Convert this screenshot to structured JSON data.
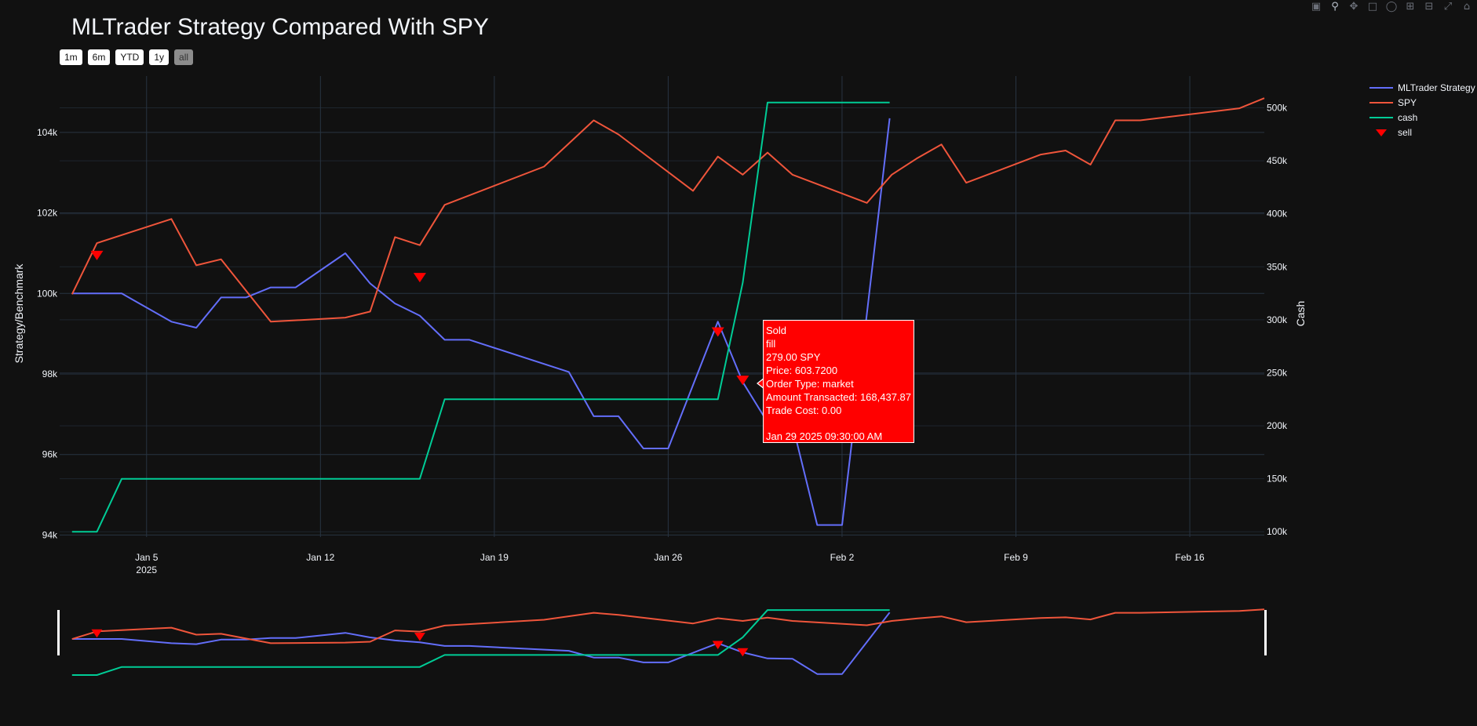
{
  "title": "MLTrader Strategy Compared With SPY",
  "range_buttons": [
    {
      "label": "1m",
      "active": false
    },
    {
      "label": "6m",
      "active": false
    },
    {
      "label": "YTD",
      "active": false
    },
    {
      "label": "1y",
      "active": false
    },
    {
      "label": "all",
      "active": true
    }
  ],
  "modebar": [
    "camera-icon",
    "zoom-icon",
    "pan-icon",
    "box-select-icon",
    "lasso-icon",
    "zoom-in-icon",
    "zoom-out-icon",
    "autoscale-icon",
    "home-icon"
  ],
  "colors": {
    "strategy": "#636efa",
    "spy": "#ef553b",
    "cash": "#00cc96",
    "sell": "#ff0000",
    "grid": "#283442",
    "background": "#111111"
  },
  "chart_data": {
    "type": "line",
    "title": "MLTrader Strategy Compared With SPY",
    "ylabel": "Strategy/Benchmark",
    "y2label": "Cash",
    "xlim": [
      "2025-01-01T12:00",
      "2025-02-19T00:00"
    ],
    "ylim": [
      93950,
      105400
    ],
    "y2lim": [
      95000,
      530000
    ],
    "xticks": [
      {
        "date": "2025-01-05",
        "label": "Jan 5",
        "sublabel": "2025"
      },
      {
        "date": "2025-01-12",
        "label": "Jan 12",
        "sublabel": ""
      },
      {
        "date": "2025-01-19",
        "label": "Jan 19",
        "sublabel": ""
      },
      {
        "date": "2025-01-26",
        "label": "Jan 26",
        "sublabel": ""
      },
      {
        "date": "2025-02-02",
        "label": "Feb 2",
        "sublabel": ""
      },
      {
        "date": "2025-02-09",
        "label": "Feb 9",
        "sublabel": ""
      },
      {
        "date": "2025-02-16",
        "label": "Feb 16",
        "sublabel": ""
      }
    ],
    "yticks": [
      {
        "value": 94000,
        "label": "94k"
      },
      {
        "value": 96000,
        "label": "96k"
      },
      {
        "value": 98000,
        "label": "98k"
      },
      {
        "value": 100000,
        "label": "100k"
      },
      {
        "value": 102000,
        "label": "102k"
      },
      {
        "value": 104000,
        "label": "104k"
      }
    ],
    "y2ticks": [
      {
        "value": 100000,
        "label": "100k"
      },
      {
        "value": 150000,
        "label": "150k"
      },
      {
        "value": 200000,
        "label": "200k"
      },
      {
        "value": 250000,
        "label": "250k"
      },
      {
        "value": 300000,
        "label": "300k"
      },
      {
        "value": 350000,
        "label": "350k"
      },
      {
        "value": 400000,
        "label": "400k"
      },
      {
        "value": 450000,
        "label": "450k"
      },
      {
        "value": 500000,
        "label": "500k"
      }
    ],
    "legend_position": "top-right",
    "series": [
      {
        "name": "MLTrader Strategy",
        "axis": "y",
        "color": "#636efa",
        "points": [
          [
            "2025-01-02",
            100000
          ],
          [
            "2025-01-03",
            100000
          ],
          [
            "2025-01-04",
            100000
          ],
          [
            "2025-01-06",
            99300
          ],
          [
            "2025-01-07",
            99150
          ],
          [
            "2025-01-08",
            99900
          ],
          [
            "2025-01-09",
            99900
          ],
          [
            "2025-01-10",
            100150
          ],
          [
            "2025-01-11",
            100150
          ],
          [
            "2025-01-13",
            101000
          ],
          [
            "2025-01-14",
            100250
          ],
          [
            "2025-01-15",
            99750
          ],
          [
            "2025-01-16",
            99450
          ],
          [
            "2025-01-17",
            98850
          ],
          [
            "2025-01-18",
            98850
          ],
          [
            "2025-01-22",
            98050
          ],
          [
            "2025-01-23",
            96950
          ],
          [
            "2025-01-24",
            96950
          ],
          [
            "2025-01-25",
            96150
          ],
          [
            "2025-01-26",
            96150
          ],
          [
            "2025-01-28",
            99300
          ],
          [
            "2025-01-29",
            97800
          ],
          [
            "2025-01-30",
            96800
          ],
          [
            "2025-01-31",
            96750
          ],
          [
            "2025-02-01",
            94250
          ],
          [
            "2025-02-02",
            94250
          ],
          [
            "2025-02-03",
            99500
          ],
          [
            "2025-02-03T22:00",
            104350
          ]
        ]
      },
      {
        "name": "SPY",
        "axis": "y",
        "color": "#ef553b",
        "points": [
          [
            "2025-01-02",
            99980
          ],
          [
            "2025-01-03",
            101250
          ],
          [
            "2025-01-06",
            101850
          ],
          [
            "2025-01-07",
            100700
          ],
          [
            "2025-01-08",
            100850
          ],
          [
            "2025-01-10",
            99300
          ],
          [
            "2025-01-13",
            99400
          ],
          [
            "2025-01-14",
            99550
          ],
          [
            "2025-01-15",
            101400
          ],
          [
            "2025-01-16",
            101200
          ],
          [
            "2025-01-17",
            102200
          ],
          [
            "2025-01-21",
            103150
          ],
          [
            "2025-01-23",
            104300
          ],
          [
            "2025-01-24",
            103950
          ],
          [
            "2025-01-27",
            102550
          ],
          [
            "2025-01-28",
            103400
          ],
          [
            "2025-01-29",
            102950
          ],
          [
            "2025-01-30",
            103500
          ],
          [
            "2025-01-31",
            102950
          ],
          [
            "2025-02-03",
            102250
          ],
          [
            "2025-02-04",
            102950
          ],
          [
            "2025-02-05",
            103350
          ],
          [
            "2025-02-06",
            103700
          ],
          [
            "2025-02-07",
            102750
          ],
          [
            "2025-02-10",
            103450
          ],
          [
            "2025-02-11",
            103550
          ],
          [
            "2025-02-12",
            103200
          ],
          [
            "2025-02-13",
            104300
          ],
          [
            "2025-02-14",
            104300
          ],
          [
            "2025-02-18",
            104600
          ],
          [
            "2025-02-19",
            104850
          ]
        ]
      },
      {
        "name": "cash",
        "axis": "y2",
        "color": "#00cc96",
        "points": [
          [
            "2025-01-02",
            100000
          ],
          [
            "2025-01-03",
            100000
          ],
          [
            "2025-01-04",
            150000
          ],
          [
            "2025-01-16",
            150000
          ],
          [
            "2025-01-17",
            225000
          ],
          [
            "2025-01-28",
            225000
          ],
          [
            "2025-01-29",
            335000
          ],
          [
            "2025-01-30",
            505000
          ],
          [
            "2025-02-03T22:00",
            505000
          ]
        ]
      },
      {
        "name": "sell",
        "axis": "y",
        "color": "#ff0000",
        "marker": "triangle-down",
        "points": [
          [
            "2025-01-03",
            100950
          ],
          [
            "2025-01-16",
            100400
          ],
          [
            "2025-01-28",
            99050
          ],
          [
            "2025-01-29",
            97850
          ]
        ]
      }
    ]
  },
  "tooltip": {
    "lines": [
      "Sold",
      "fill",
      "279.00 SPY",
      "Price: 603.7200",
      "Order Type: market",
      "Amount Transacted: 168,437.87",
      "Trade Cost: 0.00"
    ],
    "timestamp": "Jan 29 2025 09:30:00 AM"
  }
}
